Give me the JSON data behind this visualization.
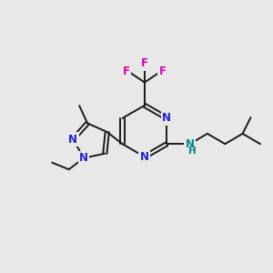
{
  "background_color": "#e8e8e8",
  "bond_color": "#1a1a1a",
  "N_color": "#2222cc",
  "F_color": "#dd00aa",
  "NH_color": "#008888",
  "figsize": [
    3.0,
    3.0
  ],
  "dpi": 100,
  "xlim": [
    0,
    10
  ],
  "ylim": [
    0,
    10
  ]
}
